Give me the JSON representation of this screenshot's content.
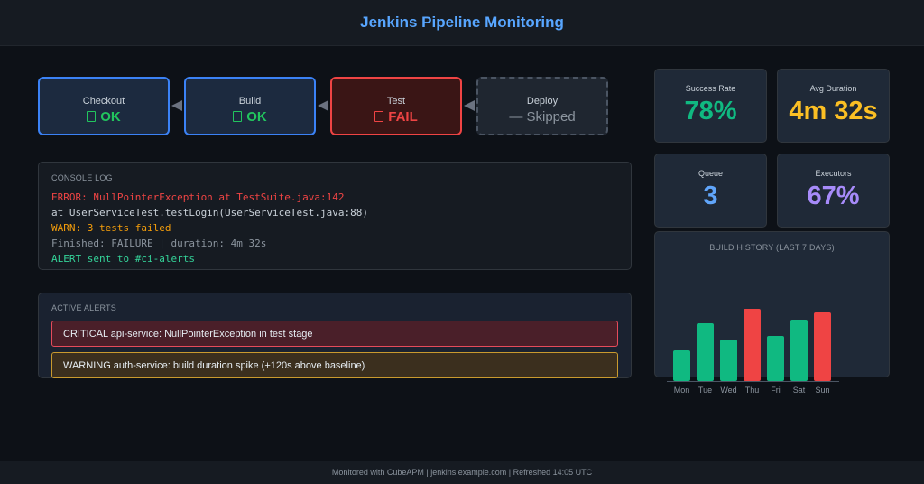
{
  "header": {
    "title": "Jenkins Pipeline Monitoring"
  },
  "pipeline": {
    "stages": [
      {
        "name": "Checkout",
        "status": "OK",
        "icon": "check-icon",
        "state": "ok"
      },
      {
        "name": "Build",
        "status": "OK",
        "icon": "check-icon",
        "state": "ok"
      },
      {
        "name": "Test",
        "status": "FAIL",
        "icon": "cross-icon",
        "state": "fail"
      },
      {
        "name": "Deploy",
        "status": "— Skipped",
        "state": "skipped"
      }
    ]
  },
  "console": {
    "title": "CONSOLE LOG",
    "lines": [
      {
        "text": "ERROR: NullPointerException at TestSuite.java:142",
        "level": "error"
      },
      {
        "text": "at UserServiceTest.testLogin(UserServiceTest.java:88)",
        "level": "trace"
      },
      {
        "text": "WARN: 3 tests failed",
        "level": "warn"
      },
      {
        "text": "Finished: FAILURE | duration: 4m 32s",
        "level": "info"
      },
      {
        "text": "ALERT sent to #ci-alerts",
        "level": "alert"
      }
    ]
  },
  "alerts": {
    "title": "ACTIVE ALERTS",
    "items": [
      {
        "text": "CRITICAL api-service: NullPointerException in test stage",
        "severity": "critical"
      },
      {
        "text": "WARNING auth-service: build duration spike (+120s above baseline)",
        "severity": "warning"
      }
    ]
  },
  "stats": {
    "success_rate": {
      "label": "Success Rate",
      "value": "78%"
    },
    "avg_duration": {
      "label": "Avg Duration",
      "value": "4m 32s"
    },
    "queue": {
      "label": "Queue",
      "value": "3"
    },
    "executors": {
      "label": "Executors",
      "value": "67%"
    }
  },
  "colors": {
    "accent": "#58a6ff",
    "success": "#10b981",
    "failure": "#ef4444",
    "warning": "#fbbf24",
    "queue": "#60a5fa",
    "executors": "#a78bfa"
  },
  "chart_data": {
    "type": "bar",
    "title": "BUILD HISTORY (last 7 days)",
    "categories": [
      "Mon",
      "Tue",
      "Wed",
      "Thu",
      "Fri",
      "Sat",
      "Sun"
    ],
    "values": [
      34,
      64,
      46,
      80,
      50,
      68,
      76
    ],
    "status": [
      "success",
      "success",
      "success",
      "failure",
      "success",
      "success",
      "failure"
    ],
    "ylim": [
      0,
      100
    ]
  },
  "footer": {
    "text": "Monitored with CubeAPM | jenkins.example.com | Refreshed 14:05 UTC"
  }
}
